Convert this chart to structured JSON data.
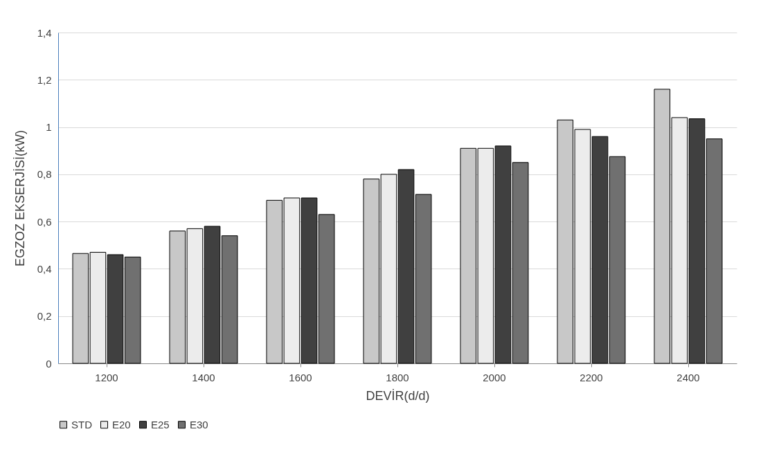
{
  "chart_data": {
    "type": "bar",
    "xlabel": "DEVİR(d/d)",
    "ylabel": "EGZOZ EKSERJİSİ(kW)",
    "categories": [
      "1200",
      "1400",
      "1600",
      "1800",
      "2000",
      "2200",
      "2400"
    ],
    "series": [
      {
        "name": "STD",
        "color": "#c8c8c8",
        "values": [
          0.465,
          0.56,
          0.69,
          0.78,
          0.91,
          1.03,
          1.16
        ]
      },
      {
        "name": "E20",
        "color": "#ececec",
        "values": [
          0.47,
          0.57,
          0.7,
          0.8,
          0.91,
          0.99,
          1.04
        ]
      },
      {
        "name": "E25",
        "color": "#404040",
        "values": [
          0.46,
          0.58,
          0.7,
          0.82,
          0.92,
          0.96,
          1.035
        ]
      },
      {
        "name": "E30",
        "color": "#707070",
        "values": [
          0.45,
          0.54,
          0.63,
          0.715,
          0.85,
          0.875,
          0.95
        ]
      }
    ],
    "ylim": [
      0,
      1.4
    ],
    "yticks": [
      0,
      {
        "value": 0.2,
        "label": "0,2"
      },
      {
        "value": 0.4,
        "label": "0,4"
      },
      {
        "value": 0.6,
        "label": "0,6"
      },
      {
        "value": 0.8,
        "label": "0,8"
      },
      1,
      {
        "value": 1.2,
        "label": "1,2"
      },
      {
        "value": 1.4,
        "label": "1,4"
      }
    ],
    "grid": "y",
    "legend": "bottom"
  }
}
